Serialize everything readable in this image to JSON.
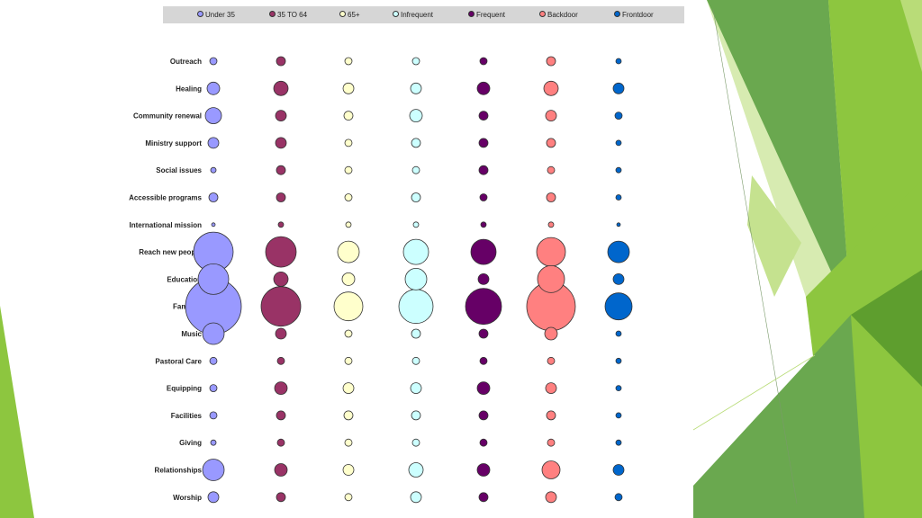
{
  "chart_data": {
    "type": "bubble-matrix",
    "series": [
      {
        "name": "Under 35",
        "color": "#9999ff"
      },
      {
        "name": "35 TO 64",
        "color": "#993366"
      },
      {
        "name": "65+",
        "color": "#ffffcc"
      },
      {
        "name": "Infrequent",
        "color": "#ccffff"
      },
      {
        "name": "Frequent",
        "color": "#660066"
      },
      {
        "name": "Backdoor",
        "color": "#ff8080"
      },
      {
        "name": "Frontdoor",
        "color": "#0066cc"
      }
    ],
    "rows": [
      {
        "label": "Outreach",
        "values": [
          4,
          5,
          4,
          4,
          4,
          5,
          3
        ]
      },
      {
        "label": "Healing",
        "values": [
          7,
          8,
          6,
          6,
          7,
          8,
          6
        ]
      },
      {
        "label": "Community renewal",
        "values": [
          9,
          6,
          5,
          7,
          5,
          6,
          4
        ]
      },
      {
        "label": "Ministry support",
        "values": [
          6,
          6,
          4,
          5,
          5,
          5,
          3
        ]
      },
      {
        "label": "Social issues",
        "values": [
          3,
          5,
          4,
          4,
          5,
          4,
          3
        ]
      },
      {
        "label": "Accessible  programs",
        "values": [
          5,
          5,
          4,
          5,
          4,
          5,
          3
        ]
      },
      {
        "label": "International mission",
        "values": [
          2,
          3,
          3,
          3,
          3,
          3,
          2
        ]
      },
      {
        "label": "Reach new people",
        "values": [
          22,
          17,
          12,
          14,
          14,
          16,
          12
        ]
      },
      {
        "label": "Education",
        "values": [
          17,
          8,
          7,
          12,
          6,
          15,
          6
        ]
      },
      {
        "label": "Families",
        "values": [
          31,
          22,
          16,
          19,
          20,
          27,
          15
        ]
      },
      {
        "label": "Music",
        "values": [
          12,
          6,
          4,
          5,
          5,
          7,
          3
        ]
      },
      {
        "label": "Pastoral  Care",
        "values": [
          4,
          4,
          4,
          4,
          4,
          4,
          3
        ]
      },
      {
        "label": "Equipping",
        "values": [
          4,
          7,
          6,
          6,
          7,
          6,
          3
        ]
      },
      {
        "label": "Facilities",
        "values": [
          4,
          5,
          5,
          5,
          5,
          5,
          3
        ]
      },
      {
        "label": "Giving",
        "values": [
          3,
          4,
          4,
          4,
          4,
          4,
          3
        ]
      },
      {
        "label": "Relationships",
        "values": [
          12,
          7,
          6,
          8,
          7,
          10,
          6
        ]
      },
      {
        "label": "Worship",
        "values": [
          6,
          5,
          4,
          6,
          5,
          6,
          4
        ]
      }
    ]
  },
  "theme": {
    "accent_greens": [
      "#8dc63f",
      "#6aa84f",
      "#5e9e2e",
      "#b9dc78",
      "#d7ebb1",
      "#4c8a2a"
    ]
  }
}
